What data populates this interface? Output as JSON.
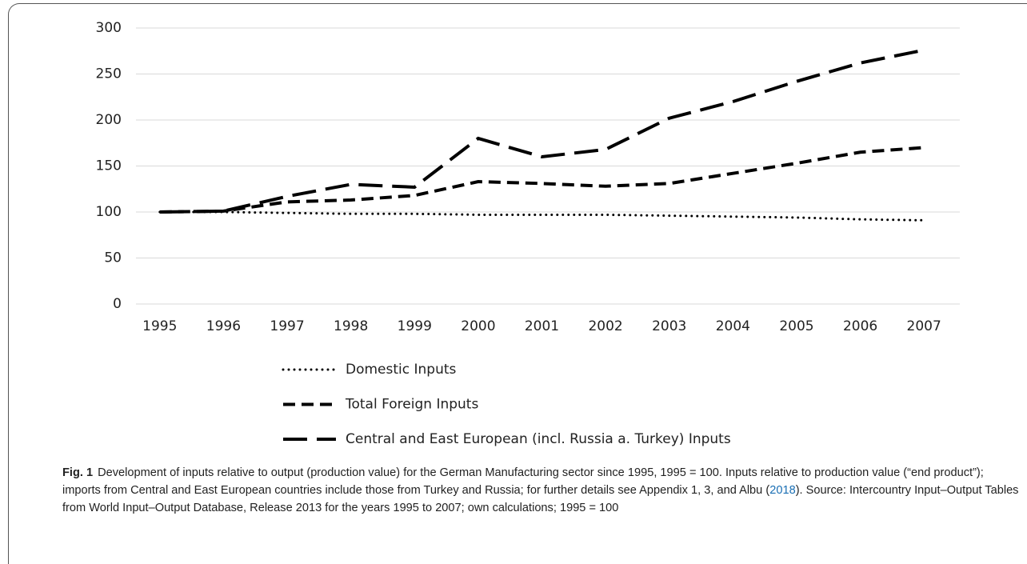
{
  "chart_data": {
    "type": "line",
    "categories": [
      "1995",
      "1996",
      "1997",
      "1998",
      "1999",
      "2000",
      "2001",
      "2002",
      "2003",
      "2004",
      "2005",
      "2006",
      "2007"
    ],
    "series": [
      {
        "name": "Domestic Inputs",
        "color": "#000000",
        "line_style": "dotted",
        "values": [
          100,
          100,
          99,
          98,
          98,
          97,
          97,
          97,
          96,
          95,
          94,
          92,
          91
        ]
      },
      {
        "name": "Total Foreign Inputs",
        "color": "#000000",
        "line_style": "dashed",
        "values": [
          100,
          101,
          111,
          113,
          118,
          133,
          131,
          128,
          131,
          142,
          153,
          165,
          170
        ]
      },
      {
        "name": "Central and East European (incl. Russia a. Turkey) Inputs",
        "color": "#000000",
        "line_style": "long-dashed",
        "values": [
          100,
          101,
          117,
          130,
          127,
          180,
          160,
          168,
          202,
          220,
          242,
          262,
          276
        ]
      }
    ],
    "ylim": [
      0,
      300
    ],
    "yticks": [
      0,
      50,
      100,
      150,
      200,
      250,
      300
    ],
    "grid": true,
    "legend": "bottom"
  },
  "caption": {
    "label": "Fig. 1",
    "text_before": "Development of inputs relative to output (production value) for the German Manufacturing sector since 1995, 1995 = 100. Inputs relative to production value (“end product”); imports from Central and East European countries include those from Turkey and Russia; for further details see Appendix 1, 3, and Albu (",
    "link": "2018",
    "text_after": "). Source: Intercountry Input–Output Tables from World Input–Output Database, Release 2013 for the years 1995 to 2007; own calculations; 1995 = 100"
  }
}
